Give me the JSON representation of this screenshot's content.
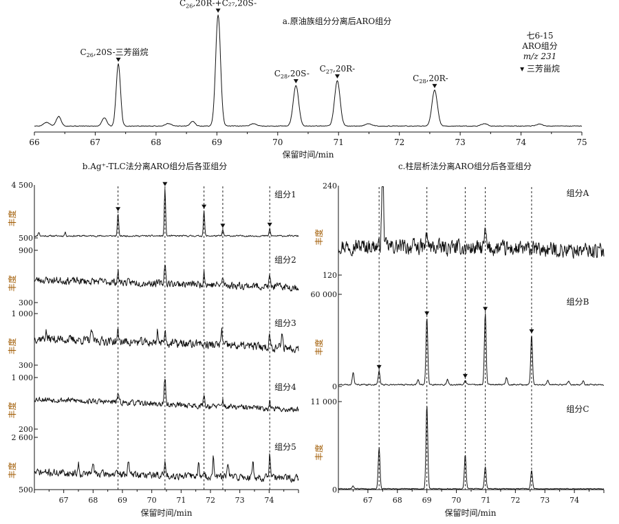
{
  "chart_data": [
    {
      "id": "a",
      "type": "line",
      "title": "a.原油族组分分离后ARO组分",
      "xlabel": "保留时间/min",
      "xlim": [
        66,
        75
      ],
      "xticks": [
        66,
        67,
        68,
        69,
        70,
        71,
        72,
        73,
        74,
        75
      ],
      "info": [
        "七6-15",
        "ARO组分",
        "m/z 231",
        "▾ 三芳甾烷"
      ],
      "baseline": 0.05,
      "peaks": [
        {
          "x": 66.2,
          "h": 0.03,
          "w": 0.05
        },
        {
          "x": 66.4,
          "h": 0.08,
          "w": 0.04
        },
        {
          "x": 67.15,
          "h": 0.07,
          "w": 0.04
        },
        {
          "x": 67.38,
          "h": 0.52,
          "w": 0.035
        },
        {
          "x": 68.2,
          "h": 0.02,
          "w": 0.05
        },
        {
          "x": 68.6,
          "h": 0.04,
          "w": 0.04
        },
        {
          "x": 69.02,
          "h": 0.93,
          "w": 0.04
        },
        {
          "x": 69.6,
          "h": 0.02,
          "w": 0.05
        },
        {
          "x": 70.3,
          "h": 0.34,
          "w": 0.045
        },
        {
          "x": 70.98,
          "h": 0.38,
          "w": 0.045
        },
        {
          "x": 71.5,
          "h": 0.02,
          "w": 0.05
        },
        {
          "x": 72.58,
          "h": 0.3,
          "w": 0.045
        },
        {
          "x": 73.4,
          "h": 0.02,
          "w": 0.05
        },
        {
          "x": 74.3,
          "h": 0.015,
          "w": 0.05
        }
      ],
      "markers": [
        67.38,
        69.02,
        70.3,
        70.98,
        72.58
      ],
      "annotations": [
        {
          "sub": "26",
          "text": ",20S-三芳甾烷"
        },
        {
          "sub": "26",
          "text": ",20R-+C₂₇,20S-"
        },
        {
          "sub": "28",
          "text": ",20S-"
        },
        {
          "sub": "27",
          "text": ",20R-"
        },
        {
          "sub": "28",
          "text": ",20R-"
        }
      ],
      "annotation_prefix": "C"
    },
    {
      "id": "b",
      "type": "line",
      "title": "b.Ag⁺-TLC法分离ARO组分后各亚组分",
      "xlabel": "保留时间/min",
      "xlim": [
        66,
        75
      ],
      "xticks": [
        67,
        68,
        69,
        70,
        71,
        72,
        73,
        74
      ],
      "guides": [
        68.85,
        70.45,
        71.78,
        72.42,
        74.02
      ],
      "ylabel": "丰度",
      "series": [
        {
          "name": "组分1",
          "ylim": [
            500,
            4500
          ],
          "yticks": [
            "4 500",
            "500"
          ],
          "noise": 0.02,
          "seed": 11,
          "baseline": 0.04,
          "markers": [
            68.85,
            70.45,
            71.78,
            72.42,
            74.02
          ],
          "peaks": [
            {
              "x": 66.15,
              "h": 0.08
            },
            {
              "x": 67.05,
              "h": 0.07
            },
            {
              "x": 68.85,
              "h": 0.45
            },
            {
              "x": 70.45,
              "h": 0.95
            },
            {
              "x": 71.78,
              "h": 0.5
            },
            {
              "x": 72.42,
              "h": 0.12
            },
            {
              "x": 74.02,
              "h": 0.14
            }
          ]
        },
        {
          "name": "组分2",
          "ylim": [
            300,
            900
          ],
          "yticks": [
            "900",
            "300"
          ],
          "noise": 0.1,
          "seed": 23,
          "baseline": 0.46,
          "trend": -0.3,
          "markers": [],
          "peaks": [
            {
              "x": 68.85,
              "h": 0.2
            },
            {
              "x": 70.45,
              "h": 0.45
            },
            {
              "x": 71.78,
              "h": 0.3
            },
            {
              "x": 72.42,
              "h": 0.15
            },
            {
              "x": 74.02,
              "h": 0.2
            }
          ]
        },
        {
          "name": "组分3",
          "ylim": [
            300,
            1000
          ],
          "yticks": [
            "1 000",
            "300"
          ],
          "noise": 0.12,
          "seed": 37,
          "baseline": 0.55,
          "trend": -0.4,
          "markers": [],
          "peaks": [
            {
              "x": 66.4,
              "h": 0.15
            },
            {
              "x": 67.95,
              "h": 0.22
            },
            {
              "x": 68.85,
              "h": 0.2
            },
            {
              "x": 70.2,
              "h": 0.28
            },
            {
              "x": 70.45,
              "h": 0.3
            },
            {
              "x": 71.6,
              "h": 0.12
            },
            {
              "x": 72.38,
              "h": 0.35
            },
            {
              "x": 74.02,
              "h": 0.28
            },
            {
              "x": 74.45,
              "h": 0.32
            }
          ]
        },
        {
          "name": "组分4",
          "ylim": [
            200,
            1000
          ],
          "yticks": [
            "1 000",
            "200"
          ],
          "noise": 0.08,
          "seed": 53,
          "baseline": 0.62,
          "trend": -0.45,
          "markers": [],
          "peaks": [
            {
              "x": 68.85,
              "h": 0.2
            },
            {
              "x": 70.45,
              "h": 0.62
            },
            {
              "x": 71.78,
              "h": 0.25
            },
            {
              "x": 72.42,
              "h": 0.15
            },
            {
              "x": 74.02,
              "h": 0.18
            }
          ]
        },
        {
          "name": "组分5",
          "ylim": [
            500,
            2600
          ],
          "yticks": [
            "2 600",
            "500"
          ],
          "noise": 0.1,
          "seed": 71,
          "baseline": 0.35,
          "trend": -0.25,
          "markers": [],
          "peaks": [
            {
              "x": 67.5,
              "h": 0.2
            },
            {
              "x": 68.0,
              "h": 0.25
            },
            {
              "x": 69.2,
              "h": 0.32
            },
            {
              "x": 70.45,
              "h": 0.25
            },
            {
              "x": 71.6,
              "h": 0.3
            },
            {
              "x": 72.1,
              "h": 0.38
            },
            {
              "x": 72.6,
              "h": 0.3
            },
            {
              "x": 73.45,
              "h": 0.32
            },
            {
              "x": 74.02,
              "h": 0.55
            }
          ]
        }
      ]
    },
    {
      "id": "c",
      "type": "line",
      "title": "c.柱层析法分离ARO组分后各亚组分",
      "xlabel": "保留时间/min",
      "xlim": [
        66,
        75
      ],
      "xticks": [
        67,
        68,
        69,
        70,
        71,
        72,
        73,
        74
      ],
      "guides": [
        67.38,
        69.0,
        70.3,
        70.98,
        72.55
      ],
      "ylabel": "丰度",
      "series": [
        {
          "name": "组分A",
          "ylim": [
            120,
            240
          ],
          "yticks": [
            "240",
            "120"
          ],
          "noise": 0.12,
          "seed": 97,
          "baseline": 0.34,
          "trend": -0.12,
          "markers": [],
          "peaks": [
            {
              "x": 67.5,
              "h": 1.0
            },
            {
              "x": 69.0,
              "h": 0.15
            },
            {
              "x": 70.98,
              "h": 0.2
            }
          ]
        },
        {
          "name": "组分B",
          "ylim": [
            0,
            60000
          ],
          "yticks": [
            "60 000",
            "0"
          ],
          "noise": 0.01,
          "seed": 131,
          "baseline": 0.02,
          "markers": [
            67.38,
            69.0,
            70.3,
            70.98,
            72.55
          ],
          "peaks": [
            {
              "x": 66.5,
              "h": 0.14
            },
            {
              "x": 67.38,
              "h": 0.15
            },
            {
              "x": 68.7,
              "h": 0.06
            },
            {
              "x": 69.0,
              "h": 0.75
            },
            {
              "x": 69.7,
              "h": 0.06
            },
            {
              "x": 70.3,
              "h": 0.05
            },
            {
              "x": 70.98,
              "h": 0.8
            },
            {
              "x": 71.7,
              "h": 0.08
            },
            {
              "x": 72.55,
              "h": 0.55
            },
            {
              "x": 73.1,
              "h": 0.05
            },
            {
              "x": 73.8,
              "h": 0.04
            },
            {
              "x": 74.3,
              "h": 0.04
            }
          ]
        },
        {
          "name": "组分C",
          "ylim": [
            0,
            11000
          ],
          "yticks": [
            "11 000",
            "0"
          ],
          "noise": 0.006,
          "seed": 173,
          "baseline": 0.01,
          "markers": [],
          "peaks": [
            {
              "x": 66.5,
              "h": 0.03
            },
            {
              "x": 67.38,
              "h": 0.48
            },
            {
              "x": 69.0,
              "h": 0.98
            },
            {
              "x": 70.3,
              "h": 0.4
            },
            {
              "x": 70.98,
              "h": 0.26
            },
            {
              "x": 72.55,
              "h": 0.22
            }
          ]
        }
      ]
    }
  ]
}
